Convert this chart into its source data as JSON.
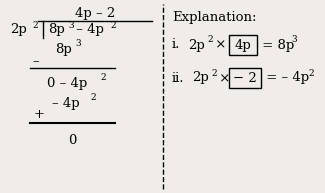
{
  "bg_color": "#f0ede8",
  "font_size_main": 9.5,
  "font_size_sup": 6.5,
  "left": {
    "quotient_text": "4p – 2",
    "divisor_base": "2p",
    "divisor_sup": "2",
    "dividend_base1": "8p",
    "dividend_sup1": "3",
    "dividend_rest": " – 4p",
    "dividend_sup2": "2",
    "step1_base": "8p",
    "step1_sup": "3",
    "step1_minus": "–",
    "step2_base": "0 – 4p",
    "step2_sup": "2",
    "step2b_base": "– 4p",
    "step2b_sup": "2",
    "step2b_plus": "+",
    "remainder": "0"
  },
  "right": {
    "title": "Explanation:",
    "i_label": "i.",
    "i_base": "2p",
    "i_sup": "2",
    "i_times": " × ",
    "i_box": "4p",
    "i_eq": " = 8p",
    "i_eq_sup": "3",
    "ii_label": "ii.",
    "ii_base": "2p",
    "ii_sup": "2",
    "ii_times": " × ",
    "ii_box": "− 2",
    "ii_eq": " = – 4p",
    "ii_eq_sup": "2"
  }
}
